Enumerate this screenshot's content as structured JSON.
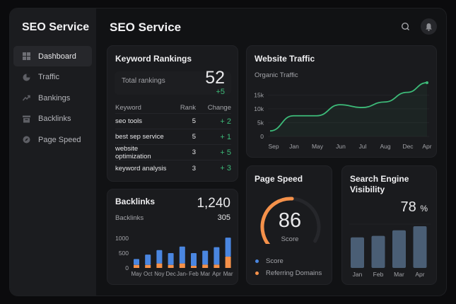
{
  "sidebar": {
    "brand": "SEO Service",
    "items": [
      {
        "label": "Dashboard",
        "icon": "grid-icon",
        "active": true
      },
      {
        "label": "Traffic",
        "icon": "pie-chart-icon"
      },
      {
        "label": "Bankings",
        "icon": "trending-up-icon"
      },
      {
        "label": "Backlinks",
        "icon": "archive-icon"
      },
      {
        "label": "Page Speed",
        "icon": "compass-icon"
      }
    ]
  },
  "header": {
    "title": "SEO Service",
    "search_icon": "search-icon",
    "bell_icon": "bell-icon"
  },
  "keywords": {
    "title": "Keyword Rankings",
    "total_label": "Total rankings",
    "total": "52",
    "total_change": "+5",
    "columns": [
      "Keyword",
      "Rank",
      "Change"
    ],
    "rows": [
      [
        "seo tools",
        "5",
        "+ 2"
      ],
      [
        "best sep service",
        "5",
        "+ 1"
      ],
      [
        "website optimization",
        "3",
        "+ 5"
      ],
      [
        "keyword analysis",
        "3",
        "+ 3"
      ]
    ]
  },
  "backlinks": {
    "title": "Backlinks",
    "total": "1,240",
    "sub_label": "Backlinks",
    "sub_value": "305"
  },
  "traffic": {
    "title": "Website Traffic",
    "subtitle": "Organic Traffic"
  },
  "page_speed": {
    "title": "Page Speed",
    "score": "86",
    "score_label": "Score",
    "gauge_percent": 86,
    "legend": [
      {
        "label": "Score",
        "color": "#4a86e0"
      },
      {
        "label": "Referring Domains",
        "color": "#f5914a"
      }
    ]
  },
  "visibility": {
    "title_line1": "Search Engine",
    "title_line2": "Visibility",
    "value": "78",
    "unit": "%"
  },
  "chart_data": [
    {
      "type": "bar",
      "stacked": true,
      "categories": [
        "May",
        "Oct",
        "Noy",
        "Dec",
        "Jan-",
        "Feb",
        "Mar",
        "Apr",
        "Mar"
      ],
      "yticks": [
        "0",
        "500",
        "1000"
      ],
      "ylim": [
        0,
        1100
      ],
      "series": [
        {
          "color": "#4a86e0",
          "values": [
            200,
            350,
            450,
            400,
            570,
            430,
            470,
            590,
            640
          ]
        },
        {
          "color": "#f5914a",
          "values": [
            100,
            100,
            150,
            100,
            150,
            70,
            110,
            110,
            380
          ]
        }
      ]
    },
    {
      "type": "line",
      "categories": [
        "Sep",
        "Jan",
        "May",
        "Jun",
        "Jul",
        "Aug",
        "Dec",
        "Apr"
      ],
      "yticks": [
        "0",
        "5k",
        "10k",
        "15k"
      ],
      "ylim": [
        0,
        20000
      ],
      "values": [
        2000,
        7500,
        7500,
        11500,
        10500,
        12500,
        16000,
        19500
      ],
      "color": "#3dbb79"
    },
    {
      "type": "bar",
      "categories": [
        "Jan",
        "Feb",
        "Mar",
        "Apr"
      ],
      "values": [
        60,
        63,
        74,
        82
      ],
      "ylim": [
        0,
        100
      ],
      "color": "#4a5e75"
    }
  ]
}
